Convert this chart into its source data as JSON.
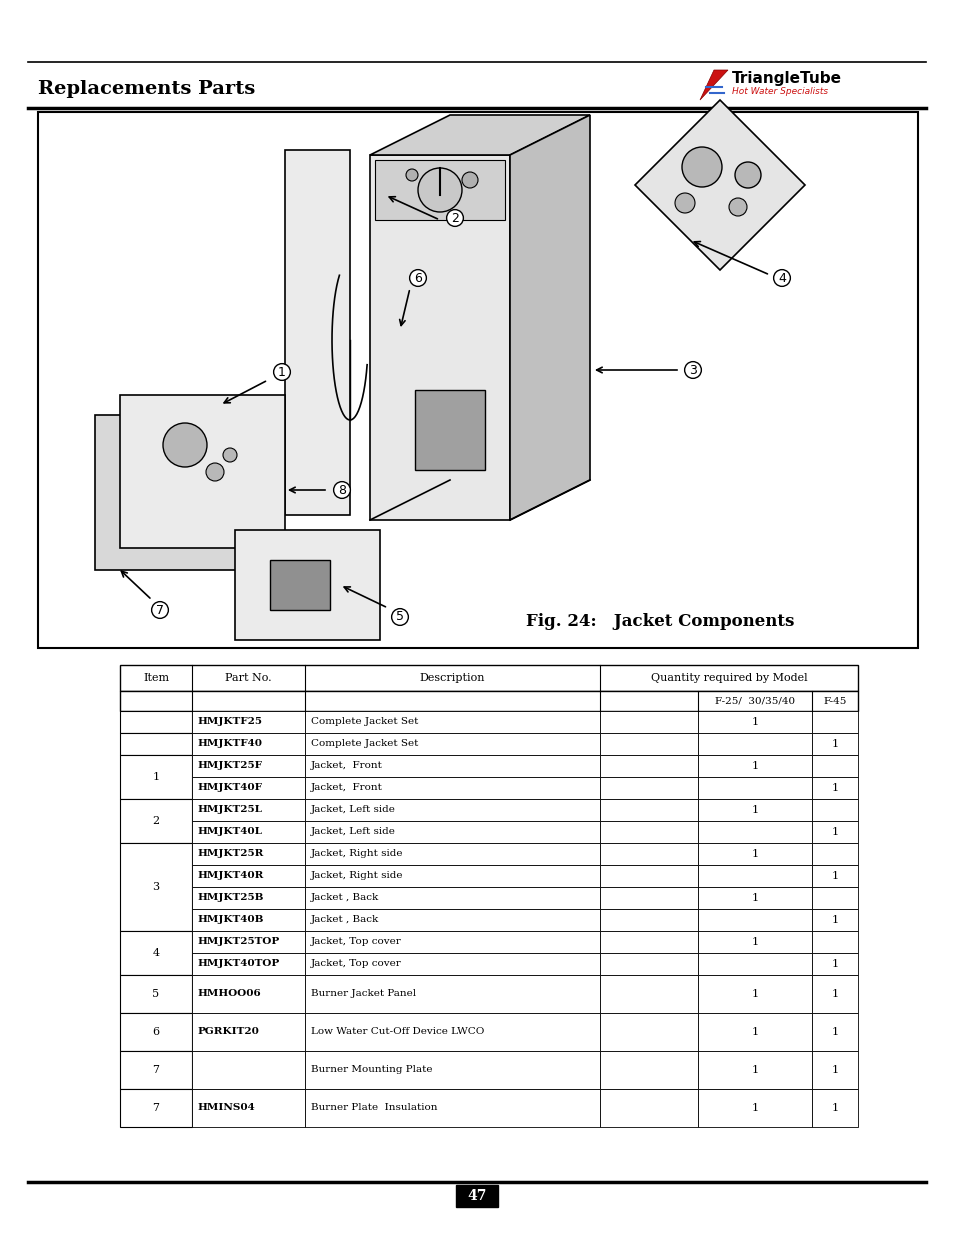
{
  "title": "Replacements Parts",
  "page_number": "47",
  "fig_caption": "Fig. 24:   Jacket Components",
  "table": {
    "rows": [
      {
        "item": "",
        "part_no": "HMJKTF25",
        "description": "Complete Jacket Set",
        "f25": "1",
        "f45": ""
      },
      {
        "item": "",
        "part_no": "HMJKTF40",
        "description": "Complete Jacket Set",
        "f25": "",
        "f45": "1"
      },
      {
        "item": "1",
        "part_no": "HMJKT25F",
        "description": "Jacket,  Front",
        "f25": "1",
        "f45": "",
        "span": 2
      },
      {
        "item": "",
        "part_no": "HMJKT40F",
        "description": "Jacket,  Front",
        "f25": "",
        "f45": "1"
      },
      {
        "item": "2",
        "part_no": "HMJKT25L",
        "description": "Jacket, Left side",
        "f25": "1",
        "f45": "",
        "span": 2
      },
      {
        "item": "",
        "part_no": "HMJKT40L",
        "description": "Jacket, Left side",
        "f25": "",
        "f45": "1"
      },
      {
        "item": "3",
        "part_no": "HMJKT25R",
        "description": "Jacket, Right side",
        "f25": "1",
        "f45": "",
        "span": 4
      },
      {
        "item": "",
        "part_no": "HMJKT40R",
        "description": "Jacket, Right side",
        "f25": "",
        "f45": "1"
      },
      {
        "item": "",
        "part_no": "HMJKT25B",
        "description": "Jacket , Back",
        "f25": "1",
        "f45": ""
      },
      {
        "item": "",
        "part_no": "HMJKT40B",
        "description": "Jacket , Back",
        "f25": "",
        "f45": "1"
      },
      {
        "item": "4",
        "part_no": "HMJKT25TOP",
        "description": "Jacket, Top cover",
        "f25": "1",
        "f45": "",
        "span": 2
      },
      {
        "item": "",
        "part_no": "HMJKT40TOP",
        "description": "Jacket, Top cover",
        "f25": "",
        "f45": "1"
      },
      {
        "item": "5",
        "part_no": "HMHOO06",
        "description": "Burner Jacket Panel",
        "f25": "1",
        "f45": "1",
        "span": 1
      },
      {
        "item": "6",
        "part_no": "PGRKIT20",
        "description": "Low Water Cut-Off Device LWCO",
        "f25": "1",
        "f45": "1",
        "span": 1
      },
      {
        "item": "7",
        "part_no": "",
        "description": "Burner Mounting Plate",
        "f25": "1",
        "f45": "1",
        "span": 1
      },
      {
        "item": "7",
        "part_no": "HMINS04",
        "description": "Burner Plate  Insulation",
        "f25": "1",
        "f45": "1",
        "span": 1
      }
    ]
  }
}
